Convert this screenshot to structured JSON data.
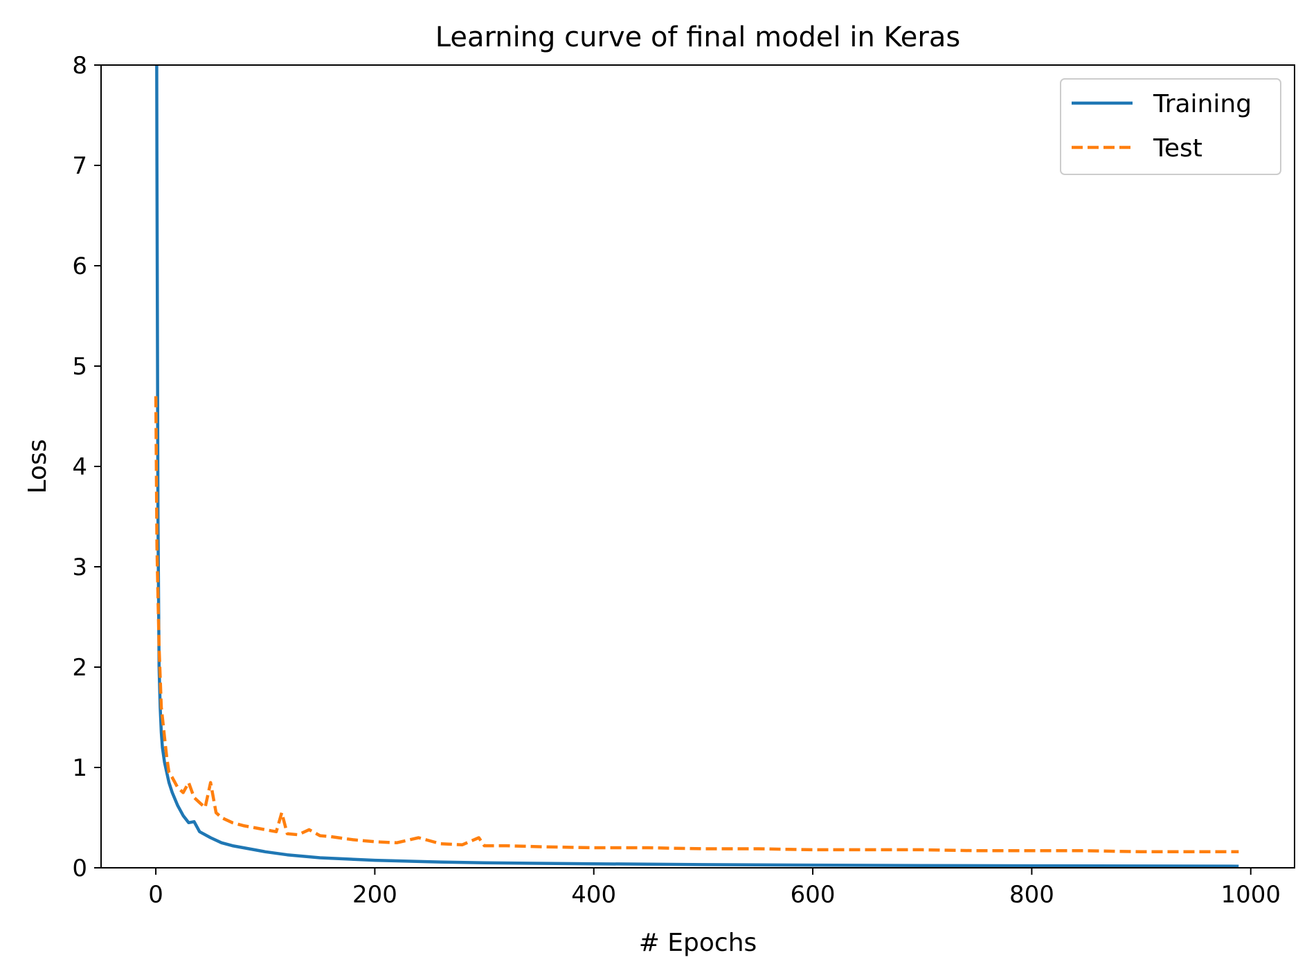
{
  "chart_data": {
    "type": "line",
    "title": "Learning curve of final model in Keras",
    "xlabel": "# Epochs",
    "ylabel": "Loss",
    "xlim": [
      -50,
      1040
    ],
    "ylim": [
      0,
      8
    ],
    "xticks": [
      0,
      200,
      400,
      600,
      800,
      1000
    ],
    "yticks": [
      0,
      1,
      2,
      3,
      4,
      5,
      6,
      7,
      8
    ],
    "grid": false,
    "legend_position": "top-right",
    "series": [
      {
        "name": "Training",
        "style": "solid",
        "color": "#1f77b4",
        "x": [
          0,
          1,
          2,
          3,
          4,
          5,
          6,
          8,
          10,
          12,
          15,
          20,
          25,
          30,
          35,
          40,
          50,
          60,
          70,
          80,
          100,
          120,
          150,
          200,
          250,
          300,
          400,
          500,
          600,
          700,
          800,
          900,
          989
        ],
        "y": [
          12.0,
          7.0,
          3.5,
          2.0,
          1.6,
          1.35,
          1.2,
          1.05,
          0.95,
          0.85,
          0.75,
          0.62,
          0.52,
          0.45,
          0.46,
          0.36,
          0.3,
          0.25,
          0.22,
          0.2,
          0.16,
          0.13,
          0.1,
          0.075,
          0.06,
          0.05,
          0.04,
          0.032,
          0.027,
          0.023,
          0.02,
          0.018,
          0.016
        ]
      },
      {
        "name": "Test",
        "style": "dashed",
        "color": "#ff7f0e",
        "x": [
          0,
          1,
          2,
          3,
          4,
          5,
          6,
          8,
          10,
          12,
          15,
          20,
          25,
          30,
          35,
          40,
          45,
          50,
          55,
          60,
          70,
          80,
          90,
          100,
          110,
          115,
          120,
          130,
          140,
          150,
          160,
          180,
          200,
          220,
          240,
          260,
          280,
          295,
          300,
          320,
          350,
          400,
          450,
          500,
          550,
          600,
          650,
          700,
          750,
          800,
          850,
          900,
          950,
          989
        ],
        "y": [
          4.7,
          3.2,
          2.7,
          2.2,
          1.9,
          1.6,
          1.5,
          1.3,
          1.1,
          0.95,
          0.9,
          0.8,
          0.75,
          0.85,
          0.7,
          0.65,
          0.6,
          0.85,
          0.55,
          0.5,
          0.45,
          0.42,
          0.4,
          0.38,
          0.36,
          0.55,
          0.34,
          0.33,
          0.38,
          0.32,
          0.31,
          0.28,
          0.26,
          0.25,
          0.3,
          0.24,
          0.23,
          0.3,
          0.22,
          0.22,
          0.21,
          0.2,
          0.2,
          0.19,
          0.19,
          0.18,
          0.18,
          0.18,
          0.17,
          0.17,
          0.17,
          0.16,
          0.16,
          0.16
        ]
      }
    ]
  }
}
